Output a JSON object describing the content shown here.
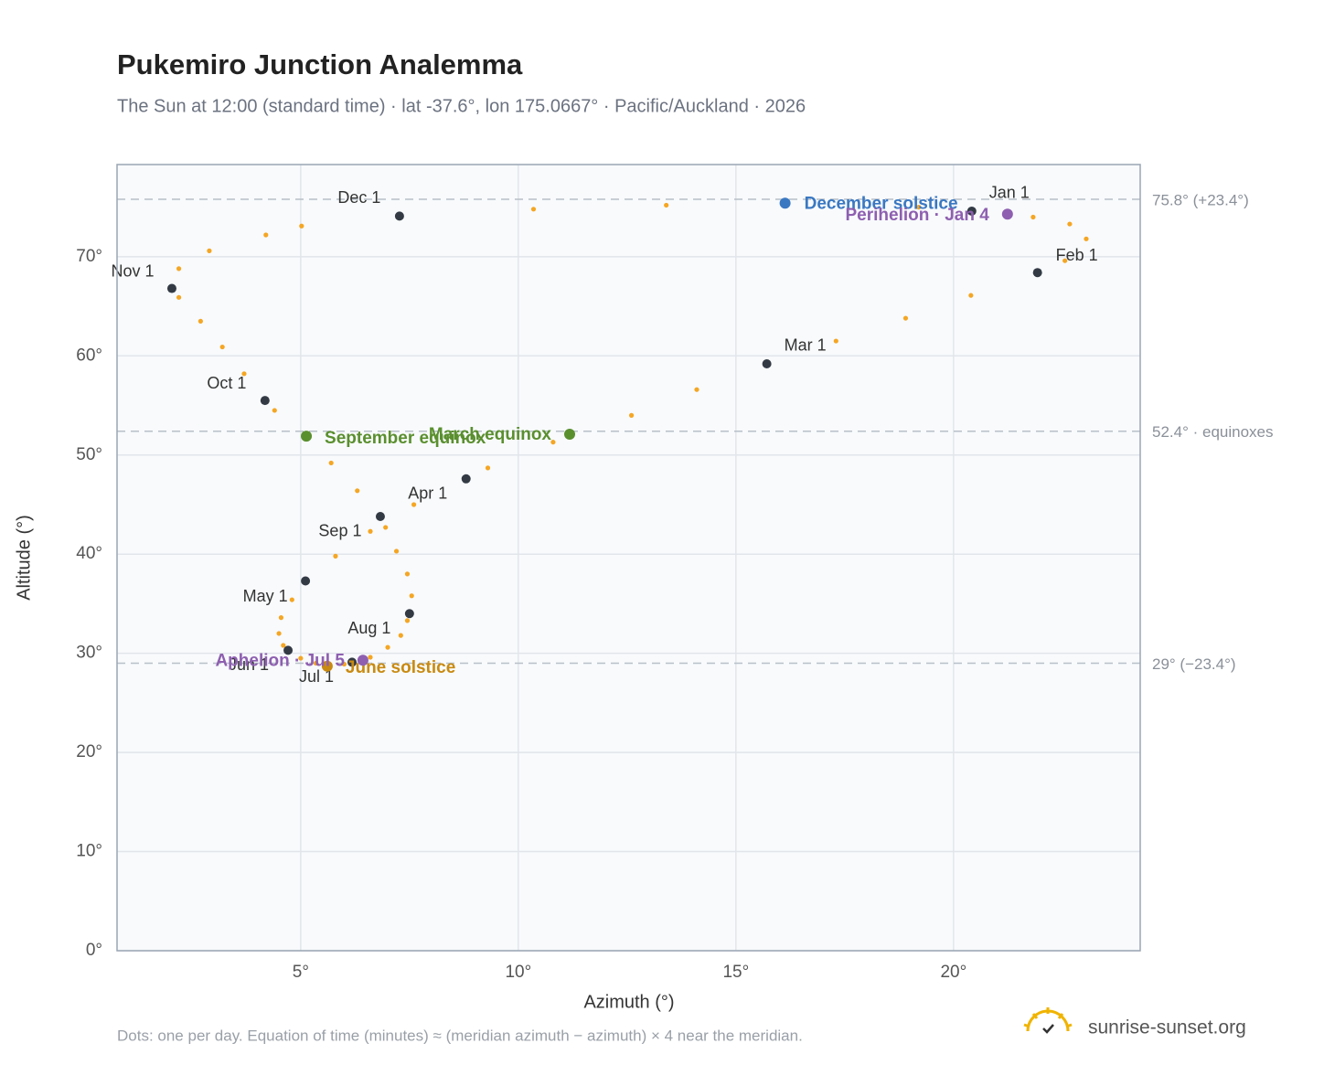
{
  "chart_data": {
    "type": "scatter",
    "title": "Pukemiro Junction Analemma",
    "subtitle": "The Sun at 12:00 (standard time) · lat -37.6°, lon 175.0667° · Pacific/Auckland · 2026",
    "x_label": "Azimuth (°)",
    "y_label": "Altitude (°)",
    "xlim": [
      0.78,
      24.29
    ],
    "ylim": [
      0,
      79.3
    ],
    "xticks": [
      {
        "value": 5,
        "label": "5°"
      },
      {
        "value": 10,
        "label": "10°"
      },
      {
        "value": 15,
        "label": "15°"
      },
      {
        "value": 20,
        "label": "20°"
      }
    ],
    "yticks": [
      {
        "value": 0,
        "label": "0°"
      },
      {
        "value": 10,
        "label": "10°"
      },
      {
        "value": 20,
        "label": "20°"
      },
      {
        "value": 30,
        "label": "30°"
      },
      {
        "value": 40,
        "label": "40°"
      },
      {
        "value": 50,
        "label": "50°"
      },
      {
        "value": 60,
        "label": "60°"
      },
      {
        "value": 70,
        "label": "70°"
      }
    ],
    "grid": true,
    "color": "#f5a623",
    "x": [
      20.42,
      21.24,
      21.83,
      22.67,
      23.05,
      22.56,
      21.93,
      20.4,
      18.9,
      17.3,
      15.71,
      14.1,
      12.6,
      11.18,
      10.8,
      9.3,
      8.8,
      7.6,
      6.6,
      5.8,
      5.11,
      4.8,
      4.55,
      4.5,
      4.6,
      4.71,
      5.0,
      5.35,
      5.61,
      6.0,
      6.18,
      6.43,
      6.6,
      7.0,
      7.3,
      7.45,
      7.5,
      7.55,
      7.45,
      7.2,
      6.95,
      6.83,
      6.3,
      5.7,
      5.13,
      4.4,
      4.18,
      3.7,
      3.2,
      2.7,
      2.2,
      2.04,
      2.2,
      2.9,
      4.2,
      5.02,
      7.27,
      10.35,
      13.4,
      16.13,
      19.2
    ],
    "y": [
      74.6,
      74.3,
      74.0,
      73.3,
      71.8,
      69.6,
      68.4,
      66.1,
      63.8,
      61.5,
      59.2,
      56.6,
      54.0,
      52.1,
      51.3,
      48.7,
      47.6,
      45.0,
      42.3,
      39.8,
      37.3,
      35.4,
      33.6,
      32.0,
      30.8,
      30.3,
      29.5,
      29.0,
      28.7,
      28.9,
      29.1,
      29.3,
      29.6,
      30.6,
      31.8,
      33.3,
      34.0,
      35.8,
      38.0,
      40.3,
      42.7,
      43.8,
      46.4,
      49.2,
      51.9,
      54.5,
      55.5,
      58.2,
      60.9,
      63.5,
      65.9,
      66.8,
      68.8,
      70.6,
      72.2,
      73.1,
      74.1,
      74.8,
      75.2,
      75.4,
      75.0
    ],
    "month_markers": {
      "labels": [
        "Jan 1",
        "Feb 1",
        "Mar 1",
        "Apr 1",
        "May 1",
        "Jun 1",
        "Jul 1",
        "Aug 1",
        "Sep 1",
        "Oct 1",
        "Nov 1",
        "Dec 1"
      ],
      "x": [
        20.42,
        21.93,
        15.71,
        8.8,
        5.11,
        4.71,
        6.18,
        7.5,
        6.83,
        4.18,
        2.04,
        7.27
      ],
      "y": [
        74.6,
        68.4,
        59.2,
        47.6,
        37.3,
        30.3,
        29.1,
        34.0,
        43.8,
        55.5,
        66.8,
        74.1
      ],
      "color": "#333a44"
    },
    "events": [
      {
        "label": "December solstice",
        "x": 16.13,
        "y": 75.4,
        "color": "#3a78c2"
      },
      {
        "label": "Perihelion · Jan 4",
        "x": 21.24,
        "y": 74.3,
        "color": "#8e5fb0"
      },
      {
        "label": "March equinox",
        "x": 11.18,
        "y": 52.1,
        "color": "#5a8f2e"
      },
      {
        "label": "September equinox",
        "x": 5.13,
        "y": 51.9,
        "color": "#5a8f2e"
      },
      {
        "label": "June solstice",
        "x": 5.61,
        "y": 28.7,
        "color": "#c98a10"
      },
      {
        "label": "Aphelion · Jul 5",
        "x": 6.43,
        "y": 29.3,
        "color": "#8e5fb0"
      }
    ],
    "ref_lines": [
      {
        "value": 75.8,
        "label": "75.8° (+23.4°)"
      },
      {
        "value": 52.4,
        "label": "52.4° · equinoxes"
      },
      {
        "value": 29,
        "label": "29° (−23.4°)"
      }
    ],
    "note": "Dots: one per day. Equation of time (minutes) ≈ (meridian azimuth − azimuth) × 4 near the meridian.",
    "brand": "sunrise-sunset.org"
  }
}
